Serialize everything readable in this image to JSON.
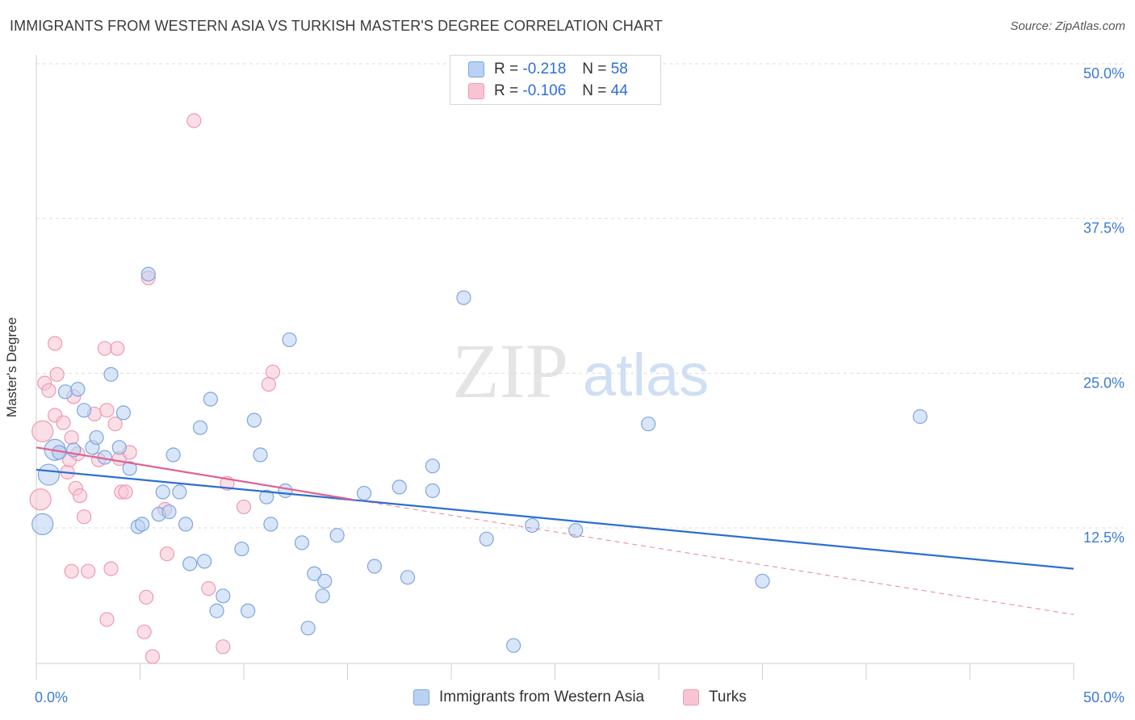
{
  "title": "IMMIGRANTS FROM WESTERN ASIA VS TURKISH MASTER'S DEGREE CORRELATION CHART",
  "source": "Source: ZipAtlas.com",
  "watermark": {
    "zip": "ZIP",
    "atlas": "atlas"
  },
  "legend_top": [
    {
      "r_label": "R =",
      "r_value": "-0.218",
      "n_label": "N =",
      "n_value": "58"
    },
    {
      "r_label": "R =",
      "r_value": "-0.106",
      "n_label": "N =",
      "n_value": "44"
    }
  ],
  "legend_bottom": [
    "Immigrants from Western Asia",
    "Turks"
  ],
  "colors": {
    "blue_fill": "#b9d1f3",
    "blue_stroke": "#7ea6e0",
    "blue_line": "#2b6fd1",
    "pink_fill": "#f8c4d4",
    "pink_stroke": "#ee9ab4",
    "pink_line": "#e0628f",
    "tick_text": "#3b7bd4",
    "grid": "#dddddd"
  },
  "chart_data": {
    "type": "scatter",
    "title": "IMMIGRANTS FROM WESTERN ASIA VS TURKISH MASTER'S DEGREE CORRELATION CHART",
    "xlabel": "",
    "ylabel": "Master's Degree",
    "xlim": [
      0,
      50
    ],
    "ylim": [
      0,
      52
    ],
    "x_tick_labels": [
      {
        "value": 0,
        "label": "0.0%"
      },
      {
        "value": 50,
        "label": "50.0%"
      }
    ],
    "y_ticks": [
      {
        "value": 12.5,
        "label": "12.5%"
      },
      {
        "value": 25,
        "label": "25.0%"
      },
      {
        "value": 37.5,
        "label": "37.5%"
      },
      {
        "value": 50,
        "label": "50.0%"
      }
    ],
    "x_minor_ticks": [
      0,
      5,
      10,
      15,
      20,
      25,
      30,
      35,
      40,
      45,
      50
    ],
    "series": [
      {
        "name": "Immigrants from Western Asia",
        "color": "blue",
        "r": -0.218,
        "n": 58,
        "trend": {
          "x1": 0,
          "y1": 17.2,
          "x2": 50,
          "y2": 9.2
        },
        "points": [
          [
            0.3,
            12.8
          ],
          [
            0.6,
            16.8
          ],
          [
            0.9,
            18.8
          ],
          [
            1.1,
            18.6
          ],
          [
            1.4,
            23.5
          ],
          [
            1.8,
            18.8
          ],
          [
            2.0,
            23.7
          ],
          [
            2.3,
            22.0
          ],
          [
            2.7,
            19.0
          ],
          [
            2.9,
            19.8
          ],
          [
            3.3,
            18.2
          ],
          [
            3.6,
            24.9
          ],
          [
            4.0,
            19.0
          ],
          [
            4.2,
            21.8
          ],
          [
            4.5,
            17.3
          ],
          [
            4.9,
            12.6
          ],
          [
            5.1,
            12.8
          ],
          [
            5.4,
            33.0
          ],
          [
            5.9,
            13.6
          ],
          [
            6.1,
            15.4
          ],
          [
            6.4,
            13.8
          ],
          [
            6.6,
            18.4
          ],
          [
            6.9,
            15.4
          ],
          [
            7.2,
            12.8
          ],
          [
            7.4,
            9.6
          ],
          [
            7.9,
            20.6
          ],
          [
            8.1,
            9.8
          ],
          [
            8.4,
            22.9
          ],
          [
            8.7,
            5.8
          ],
          [
            9.0,
            7.0
          ],
          [
            9.9,
            10.8
          ],
          [
            10.2,
            5.8
          ],
          [
            10.5,
            21.2
          ],
          [
            10.8,
            18.4
          ],
          [
            11.1,
            15.0
          ],
          [
            11.3,
            12.8
          ],
          [
            12.0,
            15.5
          ],
          [
            12.2,
            27.7
          ],
          [
            12.8,
            11.3
          ],
          [
            13.1,
            4.4
          ],
          [
            13.4,
            8.8
          ],
          [
            13.8,
            7.0
          ],
          [
            13.9,
            8.2
          ],
          [
            14.5,
            11.9
          ],
          [
            15.8,
            15.3
          ],
          [
            16.3,
            9.4
          ],
          [
            17.5,
            15.8
          ],
          [
            17.9,
            8.5
          ],
          [
            19.1,
            17.5
          ],
          [
            19.1,
            15.5
          ],
          [
            20.6,
            31.1
          ],
          [
            21.7,
            11.6
          ],
          [
            23.0,
            3.0
          ],
          [
            23.9,
            12.7
          ],
          [
            26.0,
            12.3
          ],
          [
            29.5,
            20.9
          ],
          [
            35.0,
            8.2
          ],
          [
            42.6,
            21.5
          ]
        ],
        "big_points": [
          [
            0.3,
            12.8
          ],
          [
            0.6,
            16.8
          ],
          [
            0.9,
            18.8
          ]
        ]
      },
      {
        "name": "Turks",
        "color": "pink",
        "r": -0.106,
        "n": 44,
        "trend_solid": {
          "x1": 0,
          "y1": 19.0,
          "x2": 15.2,
          "y2": 14.8
        },
        "trend_dashed": {
          "x1": 15.2,
          "y1": 14.8,
          "x2": 50,
          "y2": 5.5
        },
        "points": [
          [
            0.2,
            14.8
          ],
          [
            0.3,
            20.3
          ],
          [
            0.4,
            24.2
          ],
          [
            0.6,
            23.6
          ],
          [
            0.9,
            21.6
          ],
          [
            0.9,
            27.4
          ],
          [
            1.0,
            24.9
          ],
          [
            1.1,
            18.6
          ],
          [
            1.3,
            21.0
          ],
          [
            1.5,
            17.0
          ],
          [
            1.6,
            18.0
          ],
          [
            1.7,
            19.8
          ],
          [
            1.8,
            23.1
          ],
          [
            1.9,
            15.7
          ],
          [
            2.0,
            18.5
          ],
          [
            2.1,
            15.1
          ],
          [
            2.3,
            13.4
          ],
          [
            2.5,
            9.0
          ],
          [
            2.8,
            21.7
          ],
          [
            3.0,
            18.0
          ],
          [
            3.3,
            27.0
          ],
          [
            3.4,
            22.0
          ],
          [
            3.6,
            9.2
          ],
          [
            3.8,
            20.9
          ],
          [
            3.9,
            27.0
          ],
          [
            4.0,
            18.1
          ],
          [
            4.1,
            15.4
          ],
          [
            4.3,
            15.4
          ],
          [
            4.5,
            18.6
          ],
          [
            5.2,
            4.1
          ],
          [
            5.3,
            6.9
          ],
          [
            5.4,
            32.7
          ],
          [
            5.6,
            2.1
          ],
          [
            6.2,
            14.0
          ],
          [
            6.3,
            10.4
          ],
          [
            7.6,
            45.4
          ],
          [
            8.3,
            7.6
          ],
          [
            9.0,
            2.9
          ],
          [
            9.2,
            16.1
          ],
          [
            10.0,
            14.2
          ],
          [
            11.2,
            24.1
          ],
          [
            11.4,
            25.1
          ],
          [
            3.4,
            5.1
          ],
          [
            1.7,
            9.0
          ]
        ],
        "big_points": [
          [
            0.2,
            14.8
          ],
          [
            0.3,
            20.3
          ]
        ]
      }
    ]
  }
}
